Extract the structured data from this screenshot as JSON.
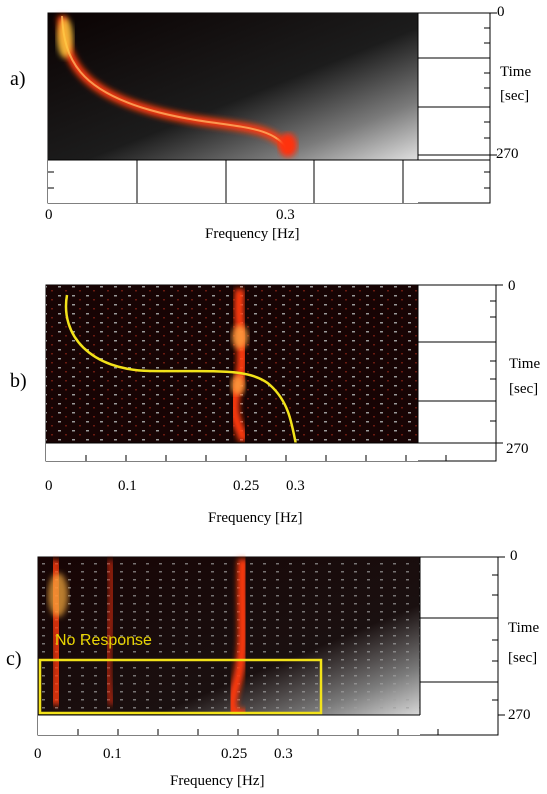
{
  "figure": {
    "panels": [
      {
        "label": "a)",
        "x_ticks": [
          "0",
          "0.3"
        ],
        "x_axis_title": "Frequency [Hz]",
        "y_top": "0",
        "y_bottom": "270",
        "y_title_1": "Time",
        "y_title_2": "[sec]"
      },
      {
        "label": "b)",
        "x_ticks": [
          "0",
          "0.1",
          "0.25",
          "0.3"
        ],
        "x_axis_title": "Frequency [Hz]",
        "y_top": "0",
        "y_bottom": "270",
        "y_title_1": "Time",
        "y_title_2": "[sec]"
      },
      {
        "label": "c)",
        "x_ticks": [
          "0",
          "0.1",
          "0.25",
          "0.3"
        ],
        "x_axis_title": "Frequency [Hz]",
        "y_top": "0",
        "y_bottom": "270",
        "y_title_1": "Time",
        "y_title_2": "[sec]",
        "annotation": "No Response"
      }
    ],
    "colors": {
      "ridge": "#ff3a10",
      "background": "#140404",
      "trace": "#f2e21a",
      "box": "#f2e21a"
    }
  }
}
